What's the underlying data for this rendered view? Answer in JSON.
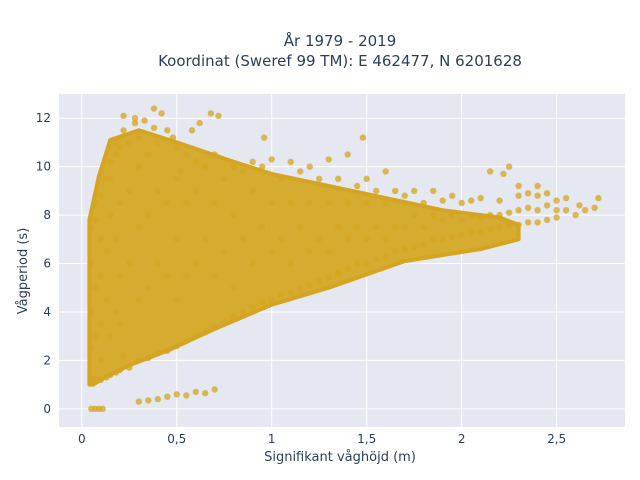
{
  "chart_data": {
    "type": "scatter",
    "title_line1": "År 1979 - 2019",
    "title_line2": "Koordinat (Sweref 99 TM): E 462477, N 6201628",
    "xlabel": "Signifikant våghöjd (m)",
    "ylabel": "Vågperiod (s)",
    "xlim": [
      -0.12,
      2.86
    ],
    "ylim": [
      -0.75,
      13
    ],
    "xticks": [
      {
        "value": 0,
        "label": "0"
      },
      {
        "value": 0.5,
        "label": "0,5"
      },
      {
        "value": 1,
        "label": "1"
      },
      {
        "value": 1.5,
        "label": "1,5"
      },
      {
        "value": 2,
        "label": "2"
      },
      {
        "value": 2.5,
        "label": "2,5"
      }
    ],
    "yticks": [
      {
        "value": 0,
        "label": "0"
      },
      {
        "value": 2,
        "label": "2"
      },
      {
        "value": 4,
        "label": "4"
      },
      {
        "value": 6,
        "label": "6"
      },
      {
        "value": 8,
        "label": "8"
      },
      {
        "value": 10,
        "label": "10"
      },
      {
        "value": 12,
        "label": "12"
      }
    ],
    "grid": true,
    "colors": {
      "marker": "#d4a520",
      "plot_bg": "#e5e8f0",
      "grid": "#ffffff",
      "text": "#2a3f5f"
    },
    "series": [
      {
        "points": [
          [
            0.05,
            1.3
          ],
          [
            0.05,
            2.5
          ],
          [
            0.05,
            4.0
          ],
          [
            0.05,
            6.0
          ],
          [
            0.05,
            7.5
          ],
          [
            0.07,
            1.2
          ],
          [
            0.07,
            3.0
          ],
          [
            0.07,
            5.0
          ],
          [
            0.07,
            7.8
          ],
          [
            0.07,
            8.5
          ],
          [
            0.1,
            1.2
          ],
          [
            0.1,
            2.0
          ],
          [
            0.1,
            3.5
          ],
          [
            0.1,
            5.5
          ],
          [
            0.1,
            7.0
          ],
          [
            0.1,
            8.8
          ],
          [
            0.12,
            9.5
          ],
          [
            0.13,
            1.3
          ],
          [
            0.13,
            4.5
          ],
          [
            0.13,
            6.5
          ],
          [
            0.15,
            9.5
          ],
          [
            0.15,
            10.2
          ],
          [
            0.15,
            8.0
          ],
          [
            0.15,
            3.0
          ],
          [
            0.15,
            1.4
          ],
          [
            0.18,
            1.5
          ],
          [
            0.18,
            4.0
          ],
          [
            0.18,
            7.0
          ],
          [
            0.18,
            10.5
          ],
          [
            0.18,
            11.0
          ],
          [
            0.2,
            1.6
          ],
          [
            0.2,
            3.5
          ],
          [
            0.2,
            5.5
          ],
          [
            0.2,
            8.5
          ],
          [
            0.2,
            10.8
          ],
          [
            0.22,
            11.5
          ],
          [
            0.22,
            12.1
          ],
          [
            0.22,
            2.2
          ],
          [
            0.25,
            1.7
          ],
          [
            0.25,
            6.0
          ],
          [
            0.25,
            9.0
          ],
          [
            0.25,
            11.0
          ],
          [
            0.28,
            11.8
          ],
          [
            0.28,
            12.0
          ],
          [
            0.3,
            2.0
          ],
          [
            0.3,
            4.5
          ],
          [
            0.3,
            7.5
          ],
          [
            0.3,
            10.0
          ],
          [
            0.3,
            11.2
          ],
          [
            0.33,
            11.9
          ],
          [
            0.35,
            2.1
          ],
          [
            0.35,
            5.0
          ],
          [
            0.35,
            8.0
          ],
          [
            0.35,
            10.5
          ],
          [
            0.38,
            12.4
          ],
          [
            0.38,
            11.6
          ],
          [
            0.4,
            2.3
          ],
          [
            0.4,
            6.0
          ],
          [
            0.4,
            9.0
          ],
          [
            0.4,
            11.0
          ],
          [
            0.42,
            12.2
          ],
          [
            0.45,
            2.4
          ],
          [
            0.45,
            5.5
          ],
          [
            0.45,
            8.5
          ],
          [
            0.45,
            11.5
          ],
          [
            0.48,
            11.2
          ],
          [
            0.5,
            2.6
          ],
          [
            0.5,
            4.5
          ],
          [
            0.5,
            7.0
          ],
          [
            0.5,
            9.5
          ],
          [
            0.5,
            10.8
          ],
          [
            0.52,
            9.8
          ],
          [
            0.55,
            2.8
          ],
          [
            0.55,
            5.5
          ],
          [
            0.55,
            8.5
          ],
          [
            0.55,
            10.5
          ],
          [
            0.58,
            11.5
          ],
          [
            0.6,
            3.0
          ],
          [
            0.6,
            6.0
          ],
          [
            0.6,
            9.0
          ],
          [
            0.6,
            10.2
          ],
          [
            0.62,
            11.8
          ],
          [
            0.65,
            3.2
          ],
          [
            0.65,
            7.0
          ],
          [
            0.65,
            10.0
          ],
          [
            0.68,
            12.2
          ],
          [
            0.7,
            3.4
          ],
          [
            0.7,
            5.5
          ],
          [
            0.7,
            8.5
          ],
          [
            0.7,
            10.5
          ],
          [
            0.72,
            12.1
          ],
          [
            0.75,
            3.6
          ],
          [
            0.75,
            6.5
          ],
          [
            0.75,
            9.5
          ],
          [
            0.8,
            3.8
          ],
          [
            0.8,
            5.0
          ],
          [
            0.8,
            8.0
          ],
          [
            0.8,
            10.0
          ],
          [
            0.85,
            4.0
          ],
          [
            0.85,
            7.0
          ],
          [
            0.85,
            9.8
          ],
          [
            0.9,
            4.2
          ],
          [
            0.9,
            6.0
          ],
          [
            0.9,
            9.0
          ],
          [
            0.9,
            10.2
          ],
          [
            0.95,
            4.4
          ],
          [
            0.95,
            7.5
          ],
          [
            0.95,
            10.0
          ],
          [
            0.96,
            11.2
          ],
          [
            1.0,
            4.5
          ],
          [
            1.0,
            6.5
          ],
          [
            1.0,
            8.5
          ],
          [
            1.0,
            10.3
          ],
          [
            1.05,
            4.7
          ],
          [
            1.05,
            7.0
          ],
          [
            1.05,
            9.5
          ],
          [
            1.1,
            4.8
          ],
          [
            1.1,
            6.0
          ],
          [
            1.1,
            8.5
          ],
          [
            1.1,
            10.2
          ],
          [
            1.15,
            5.0
          ],
          [
            1.15,
            7.5
          ],
          [
            1.15,
            9.8
          ],
          [
            1.2,
            5.1
          ],
          [
            1.2,
            6.5
          ],
          [
            1.2,
            8.5
          ],
          [
            1.2,
            10.0
          ],
          [
            1.25,
            5.3
          ],
          [
            1.25,
            7.0
          ],
          [
            1.25,
            9.5
          ],
          [
            1.3,
            5.4
          ],
          [
            1.3,
            6.5
          ],
          [
            1.3,
            8.5
          ],
          [
            1.3,
            10.3
          ],
          [
            1.35,
            5.6
          ],
          [
            1.35,
            7.5
          ],
          [
            1.35,
            9.5
          ],
          [
            1.4,
            5.8
          ],
          [
            1.4,
            7.0
          ],
          [
            1.4,
            8.5
          ],
          [
            1.4,
            10.5
          ],
          [
            1.45,
            6.0
          ],
          [
            1.45,
            7.5
          ],
          [
            1.45,
            9.2
          ],
          [
            1.48,
            11.2
          ],
          [
            1.5,
            6.0
          ],
          [
            1.5,
            7.0
          ],
          [
            1.5,
            8.5
          ],
          [
            1.5,
            9.5
          ],
          [
            1.55,
            6.2
          ],
          [
            1.55,
            7.5
          ],
          [
            1.55,
            9.0
          ],
          [
            1.6,
            6.3
          ],
          [
            1.6,
            7.0
          ],
          [
            1.6,
            8.5
          ],
          [
            1.6,
            9.8
          ],
          [
            1.65,
            6.5
          ],
          [
            1.65,
            7.5
          ],
          [
            1.65,
            9.0
          ],
          [
            1.7,
            6.6
          ],
          [
            1.7,
            7.5
          ],
          [
            1.7,
            8.8
          ],
          [
            1.75,
            6.7
          ],
          [
            1.75,
            8.0
          ],
          [
            1.75,
            9.0
          ],
          [
            1.8,
            6.8
          ],
          [
            1.8,
            7.5
          ],
          [
            1.8,
            8.5
          ],
          [
            1.85,
            7.0
          ],
          [
            1.85,
            8.0
          ],
          [
            1.85,
            9.0
          ],
          [
            1.9,
            7.0
          ],
          [
            1.9,
            7.8
          ],
          [
            1.9,
            8.6
          ],
          [
            1.95,
            7.1
          ],
          [
            1.95,
            8.0
          ],
          [
            1.95,
            8.8
          ],
          [
            2.0,
            7.2
          ],
          [
            2.0,
            7.8
          ],
          [
            2.0,
            8.5
          ],
          [
            2.05,
            7.3
          ],
          [
            2.05,
            8.0
          ],
          [
            2.05,
            8.6
          ],
          [
            2.1,
            7.3
          ],
          [
            2.1,
            7.9
          ],
          [
            2.1,
            8.7
          ],
          [
            2.15,
            7.4
          ],
          [
            2.15,
            8.0
          ],
          [
            2.15,
            9.8
          ],
          [
            2.2,
            7.5
          ],
          [
            2.2,
            8.0
          ],
          [
            2.2,
            8.6
          ],
          [
            2.22,
            9.7
          ],
          [
            2.25,
            7.6
          ],
          [
            2.25,
            8.1
          ],
          [
            2.25,
            10.0
          ],
          [
            2.3,
            7.6
          ],
          [
            2.3,
            8.2
          ],
          [
            2.3,
            8.8
          ],
          [
            2.35,
            7.7
          ],
          [
            2.35,
            8.3
          ],
          [
            2.35,
            8.9
          ],
          [
            2.4,
            7.7
          ],
          [
            2.4,
            8.2
          ],
          [
            2.4,
            8.8
          ],
          [
            2.45,
            7.8
          ],
          [
            2.45,
            8.4
          ],
          [
            2.5,
            8.2
          ],
          [
            2.5,
            8.6
          ],
          [
            2.55,
            8.2
          ],
          [
            2.55,
            8.7
          ],
          [
            2.6,
            8.0
          ],
          [
            2.62,
            8.4
          ],
          [
            2.65,
            8.2
          ],
          [
            2.72,
            8.7
          ],
          [
            2.7,
            8.3
          ],
          [
            2.5,
            7.9
          ],
          [
            2.45,
            8.9
          ],
          [
            2.4,
            9.2
          ],
          [
            2.3,
            9.2
          ],
          [
            0.3,
            0.3
          ],
          [
            0.4,
            0.4
          ],
          [
            0.35,
            0.35
          ],
          [
            0.45,
            0.5
          ],
          [
            0.5,
            0.6
          ],
          [
            0.55,
            0.55
          ],
          [
            0.6,
            0.7
          ],
          [
            0.65,
            0.65
          ],
          [
            0.7,
            0.8
          ],
          [
            0.05,
            0.0
          ],
          [
            0.07,
            0.0
          ],
          [
            0.09,
            0.0
          ],
          [
            0.11,
            0.0
          ]
        ]
      }
    ]
  }
}
